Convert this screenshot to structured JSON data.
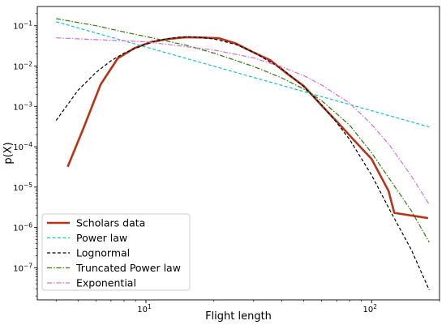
{
  "chart_data": {
    "type": "line",
    "xlabel": "Flight length",
    "ylabel": "p(X)",
    "xscale": "log",
    "yscale": "log",
    "xlim": [
      3.3,
      200
    ],
    "ylim": [
      1.6e-08,
      0.3
    ],
    "x_ticks": [
      {
        "value": 10,
        "base": "10",
        "exp": "1"
      },
      {
        "value": 100,
        "base": "10",
        "exp": "2"
      }
    ],
    "y_ticks": [
      {
        "value": 1e-07,
        "base": "10",
        "exp": "−7"
      },
      {
        "value": 1e-06,
        "base": "10",
        "exp": "−6"
      },
      {
        "value": 1e-05,
        "base": "10",
        "exp": "−5"
      },
      {
        "value": 0.0001,
        "base": "10",
        "exp": "−4"
      },
      {
        "value": 0.001,
        "base": "10",
        "exp": "−3"
      },
      {
        "value": 0.01,
        "base": "10",
        "exp": "−2"
      },
      {
        "value": 0.1,
        "base": "10",
        "exp": "−1"
      }
    ],
    "grid": false,
    "legend": "lower-left",
    "series": [
      {
        "name": "Scholars data",
        "color": "#b83216",
        "style": "solid",
        "points": [
          [
            4.5,
            3.2e-05
          ],
          [
            5.3,
            0.0003
          ],
          [
            6.3,
            0.0035
          ],
          [
            7.5,
            0.0155
          ],
          [
            8.9,
            0.028
          ],
          [
            10.6,
            0.04
          ],
          [
            12.6,
            0.047
          ],
          [
            15,
            0.052
          ],
          [
            17.8,
            0.051
          ],
          [
            21.1,
            0.049
          ],
          [
            25.1,
            0.036
          ],
          [
            29.9,
            0.022
          ],
          [
            35.5,
            0.014
          ],
          [
            42.2,
            0.0065
          ],
          [
            50.1,
            0.0032
          ],
          [
            59.6,
            0.0011
          ],
          [
            70.8,
            0.0004
          ],
          [
            84.1,
            0.00014
          ],
          [
            100,
            5e-05
          ],
          [
            118.9,
            8e-06
          ],
          [
            126,
            2.3e-06
          ],
          [
            178,
            1.7e-06
          ]
        ]
      },
      {
        "name": "Power law",
        "color": "#17becf",
        "style": "dashed",
        "points": [
          [
            4.0,
            0.126
          ],
          [
            180,
            0.00031
          ]
        ]
      },
      {
        "name": "Lognormal",
        "color": "#000000",
        "style": "dashed",
        "points": [
          [
            4.0,
            0.00045
          ],
          [
            5,
            0.0025
          ],
          [
            6,
            0.0069
          ],
          [
            7,
            0.0135
          ],
          [
            8,
            0.021
          ],
          [
            10,
            0.035
          ],
          [
            12,
            0.046
          ],
          [
            14,
            0.052
          ],
          [
            15.5,
            0.053
          ],
          [
            17,
            0.052
          ],
          [
            20,
            0.047
          ],
          [
            25,
            0.0345
          ],
          [
            30,
            0.022
          ],
          [
            40,
            0.0086
          ],
          [
            50,
            0.0031
          ],
          [
            60,
            0.0011
          ],
          [
            70,
            0.0004
          ],
          [
            80,
            0.00015
          ],
          [
            100,
            2e-05
          ],
          [
            120,
            2.8e-06
          ],
          [
            150,
            2.8e-07
          ],
          [
            180,
            2.8e-08
          ]
        ]
      },
      {
        "name": "Truncated Power law",
        "color": "#2c7a0e",
        "style": "dashdot",
        "points": [
          [
            4.0,
            0.15
          ],
          [
            6,
            0.1
          ],
          [
            8,
            0.07
          ],
          [
            10,
            0.054
          ],
          [
            15,
            0.033
          ],
          [
            20,
            0.021
          ],
          [
            30,
            0.0098
          ],
          [
            40,
            0.0051
          ],
          [
            50,
            0.0027
          ],
          [
            60,
            0.0014
          ],
          [
            80,
            0.00034
          ],
          [
            100,
            7.1e-05
          ],
          [
            120,
            1.6e-05
          ],
          [
            150,
            2.6e-06
          ],
          [
            180,
            4.3e-07
          ]
        ]
      },
      {
        "name": "Exponential",
        "color": "#d66ed6",
        "style": "dashdot",
        "points": [
          [
            4.0,
            0.05
          ],
          [
            10,
            0.04
          ],
          [
            20,
            0.025
          ],
          [
            30,
            0.016
          ],
          [
            40,
            0.0095
          ],
          [
            50,
            0.0058
          ],
          [
            60,
            0.0034
          ],
          [
            80,
            0.0012
          ],
          [
            100,
            0.00036
          ],
          [
            120,
            0.00011
          ],
          [
            150,
            1.9e-05
          ],
          [
            180,
            3.7e-06
          ]
        ]
      }
    ]
  }
}
